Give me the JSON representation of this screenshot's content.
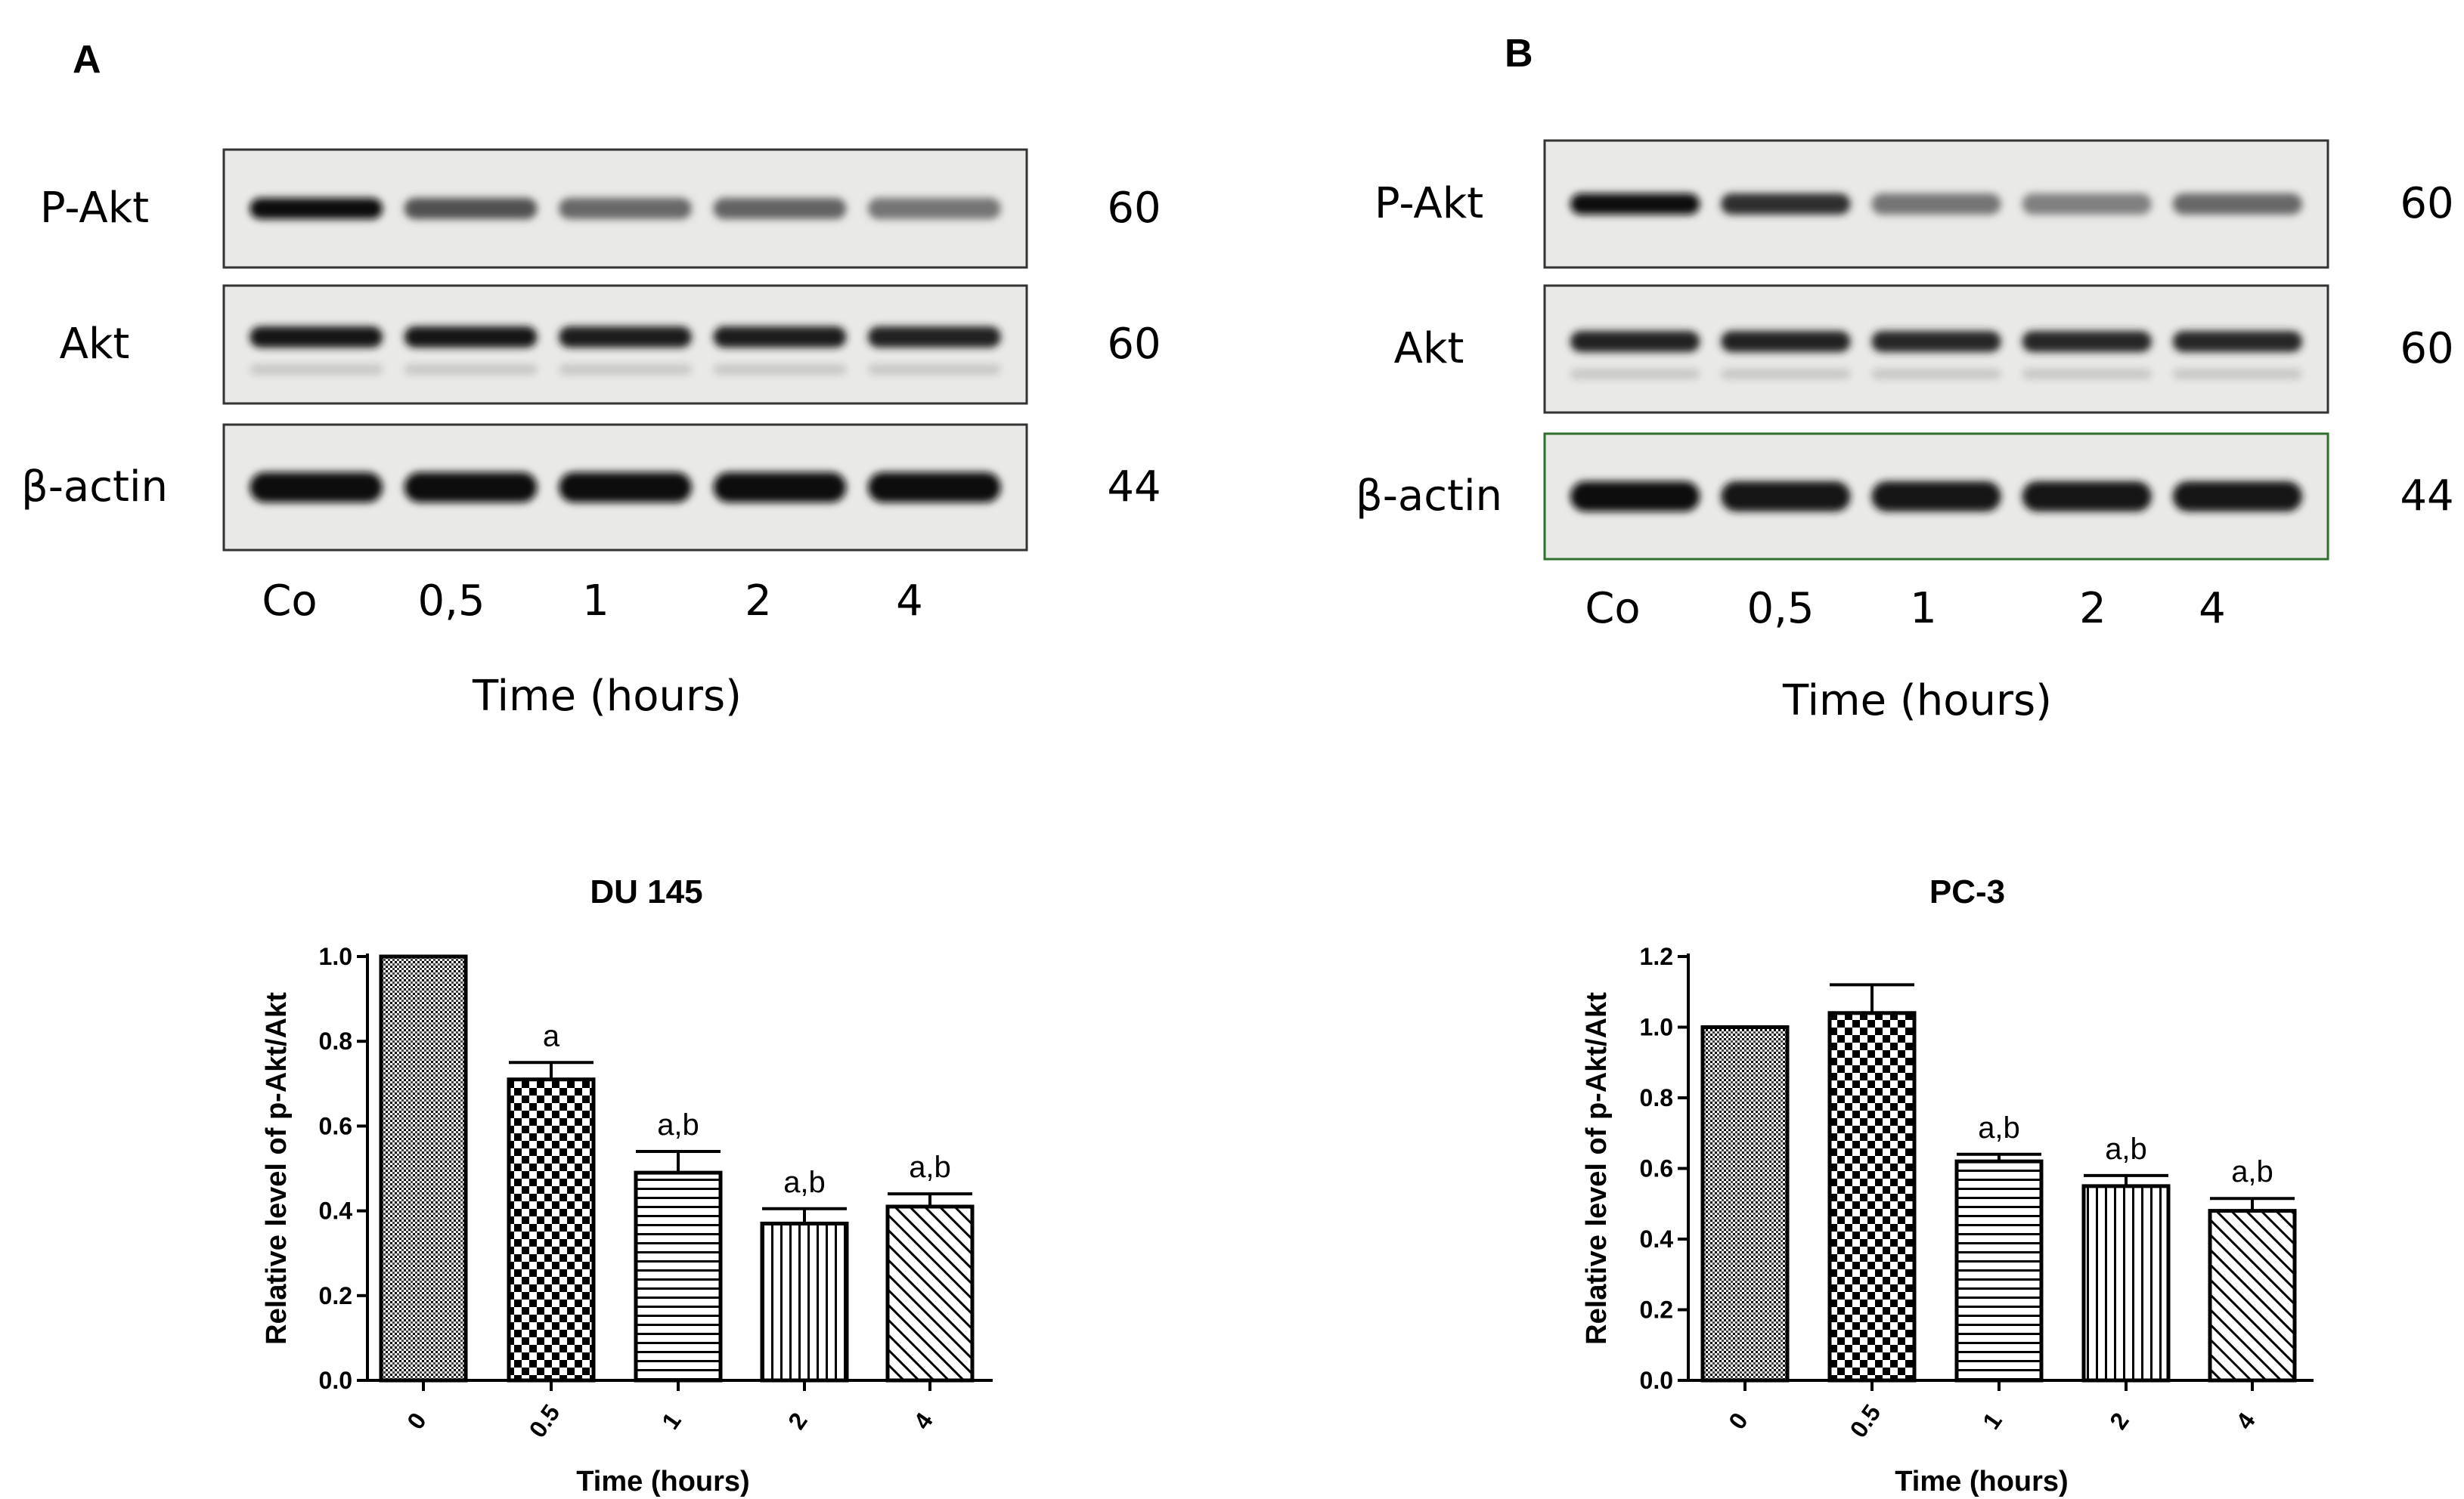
{
  "panels": [
    {
      "letter": "A",
      "blot": {
        "rows": [
          {
            "label": "P-Akt",
            "mw": "60",
            "intensity": [
              1.0,
              0.7,
              0.6,
              0.62,
              0.55
            ]
          },
          {
            "label": "Akt",
            "mw": "60",
            "intensity": [
              0.95,
              0.95,
              0.92,
              0.92,
              0.9
            ]
          },
          {
            "label": "β-actin",
            "mw": "44",
            "intensity": [
              1.0,
              1.0,
              1.0,
              1.0,
              1.0
            ]
          }
        ],
        "lanes": [
          "Co",
          "0,5",
          "1",
          "2",
          "4"
        ],
        "xlabel": "Time (hours)"
      }
    },
    {
      "letter": "B",
      "blot": {
        "rows": [
          {
            "label": "P-Akt",
            "mw": "60",
            "intensity": [
              1.0,
              0.85,
              0.55,
              0.5,
              0.6
            ]
          },
          {
            "label": "Akt",
            "mw": "60",
            "intensity": [
              0.9,
              0.9,
              0.88,
              0.88,
              0.88
            ]
          },
          {
            "label": "β-actin",
            "mw": "44",
            "intensity": [
              1.0,
              0.95,
              0.95,
              0.95,
              0.95
            ]
          }
        ],
        "lanes": [
          "Co",
          "0,5",
          "1",
          "2",
          "4"
        ],
        "xlabel": "Time (hours)"
      }
    }
  ],
  "chart_data": [
    {
      "type": "bar",
      "title": "DU 145",
      "xlabel": "Time (hours)",
      "ylabel": "Relative level of p-Akt/Akt",
      "categories": [
        "0",
        "0.5",
        "1",
        "2",
        "4"
      ],
      "values": [
        1.0,
        0.71,
        0.49,
        0.37,
        0.41
      ],
      "errors": [
        0.0,
        0.04,
        0.05,
        0.035,
        0.03
      ],
      "annotations": [
        "",
        "a",
        "a,b",
        "a,b",
        "a,b"
      ],
      "patterns": [
        "dots",
        "checker",
        "hlines",
        "vlines",
        "diag"
      ],
      "ylim": [
        0.0,
        1.0
      ],
      "yticks": [
        "0.0",
        "0.2",
        "0.4",
        "0.6",
        "0.8",
        "1.0"
      ]
    },
    {
      "type": "bar",
      "title": "PC-3",
      "xlabel": "Time (hours)",
      "ylabel": "Relative level of p-Akt/Akt",
      "categories": [
        "0",
        "0.5",
        "1",
        "2",
        "4"
      ],
      "values": [
        1.0,
        1.04,
        0.62,
        0.55,
        0.48
      ],
      "errors": [
        0.0,
        0.08,
        0.02,
        0.03,
        0.035
      ],
      "annotations": [
        "",
        "",
        "a,b",
        "a,b",
        "a,b"
      ],
      "patterns": [
        "dots",
        "checker",
        "hlines",
        "vlines",
        "diag"
      ],
      "ylim": [
        0.0,
        1.2
      ],
      "yticks": [
        "0.0",
        "0.2",
        "0.4",
        "0.6",
        "0.8",
        "1.0",
        "1.2"
      ]
    }
  ]
}
